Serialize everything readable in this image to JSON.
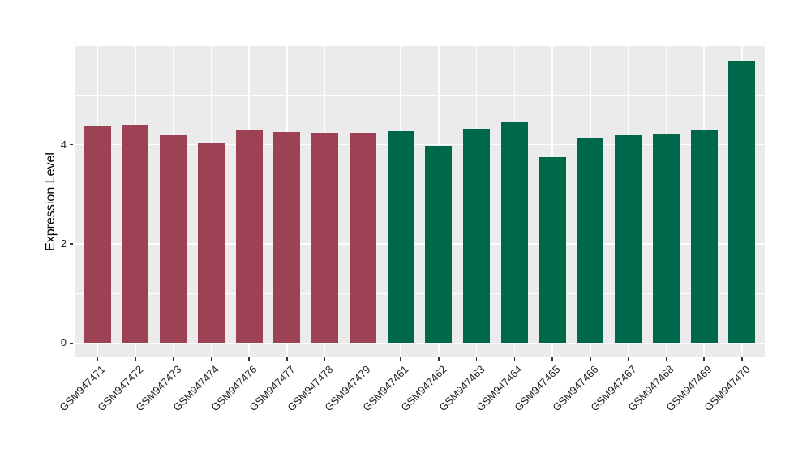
{
  "chart_data": {
    "type": "bar",
    "title": "",
    "xlabel": "",
    "ylabel": "Expression Level",
    "categories": [
      "GSM947471",
      "GSM947472",
      "GSM947473",
      "GSM947474",
      "GSM947476",
      "GSM947477",
      "GSM947478",
      "GSM947479",
      "GSM947461",
      "GSM947462",
      "GSM947463",
      "GSM947464",
      "GSM947465",
      "GSM947466",
      "GSM947467",
      "GSM947468",
      "GSM947469",
      "GSM947470"
    ],
    "bars": [
      {
        "label": "GSM947471",
        "value": 4.37,
        "group": "group1"
      },
      {
        "label": "GSM947472",
        "value": 4.4,
        "group": "group1"
      },
      {
        "label": "GSM947473",
        "value": 4.19,
        "group": "group1"
      },
      {
        "label": "GSM947474",
        "value": 4.05,
        "group": "group1"
      },
      {
        "label": "GSM947476",
        "value": 4.29,
        "group": "group1"
      },
      {
        "label": "GSM947477",
        "value": 4.25,
        "group": "group1"
      },
      {
        "label": "GSM947478",
        "value": 4.24,
        "group": "group1"
      },
      {
        "label": "GSM947479",
        "value": 4.24,
        "group": "group1"
      },
      {
        "label": "GSM947461",
        "value": 4.27,
        "group": "group2"
      },
      {
        "label": "GSM947462",
        "value": 3.98,
        "group": "group2"
      },
      {
        "label": "GSM947463",
        "value": 4.32,
        "group": "group2"
      },
      {
        "label": "GSM947464",
        "value": 4.46,
        "group": "group2"
      },
      {
        "label": "GSM947465",
        "value": 3.75,
        "group": "group2"
      },
      {
        "label": "GSM947466",
        "value": 4.15,
        "group": "group2"
      },
      {
        "label": "GSM947467",
        "value": 4.21,
        "group": "group2"
      },
      {
        "label": "GSM947468",
        "value": 4.23,
        "group": "group2"
      },
      {
        "label": "GSM947469",
        "value": 4.31,
        "group": "group2"
      },
      {
        "label": "GSM947470",
        "value": 5.7,
        "group": "group2"
      }
    ],
    "palette": {
      "group1": "#9C4254",
      "group2": "#00684A"
    },
    "ylim": [
      -0.29,
      5.99
    ],
    "y_ticks": [
      {
        "value": 0,
        "label": "0"
      },
      {
        "value": 2,
        "label": "2"
      },
      {
        "value": 4,
        "label": "4"
      }
    ],
    "y_minor_ticks": [
      1,
      3,
      5
    ],
    "grid": "on",
    "legend": "none",
    "panel_bg": "#EBEBEB",
    "grid_color": "#FFFFFF"
  }
}
